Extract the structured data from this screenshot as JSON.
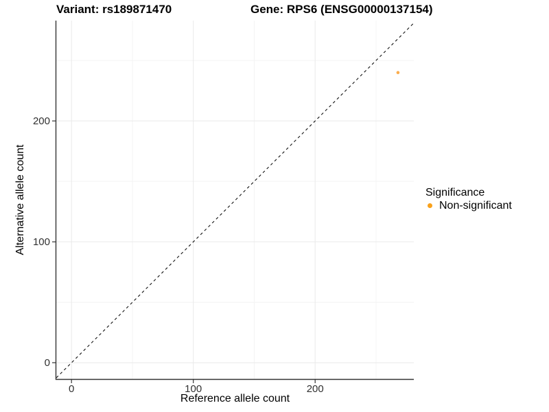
{
  "header": {
    "variant_title": "Variant: rs189871470",
    "gene_title": "Gene: RPS6 (ENSG00000137154)"
  },
  "legend": {
    "title": "Significance",
    "items": [
      {
        "label": "Non-significant",
        "marker": "circle-icon",
        "color": "#F9A11B"
      }
    ]
  },
  "chart_data": {
    "type": "scatter",
    "title": "Variant: rs189871470  /  Gene: RPS6 (ENSG00000137154)",
    "xlabel": "Reference allele count",
    "ylabel": "Alternative allele count",
    "xlim": [
      -12.5,
      281
    ],
    "ylim": [
      -13.5,
      283
    ],
    "x_ticks": [
      0,
      100,
      200
    ],
    "y_ticks": [
      0,
      100,
      200
    ],
    "x_minor_gridlines": [
      50,
      150,
      250
    ],
    "y_minor_gridlines": [
      50,
      150,
      250
    ],
    "grid": true,
    "legend_position": "right",
    "series": [
      {
        "name": "Non-significant",
        "points": [
          {
            "x": 268,
            "y": 240
          }
        ],
        "color": "#FBAD4E"
      }
    ],
    "reference_line": {
      "kind": "identity",
      "slope": 1,
      "intercept": 0,
      "style": "dashed",
      "color": "#111111",
      "dash": "4 4"
    },
    "style": {
      "axis_color": "#333333",
      "tick_label_color": "#303030",
      "major_gridline_color": "#E9E9E9",
      "minor_gridline_color": "#F4F4F4",
      "background": "#FFFFFF"
    }
  }
}
